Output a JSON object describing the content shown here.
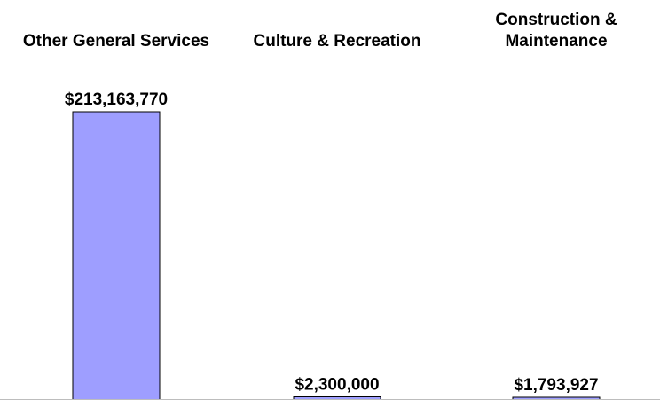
{
  "chart_data": {
    "type": "bar",
    "title": "",
    "xlabel": "",
    "ylabel": "",
    "categories": [
      "Other General Services",
      "Culture & Recreation",
      "Construction & Maintenance"
    ],
    "values": [
      213163770,
      2300000,
      1793927
    ],
    "value_labels": [
      "$213,163,770",
      "$2,300,000",
      "$1,793,927"
    ],
    "bar_color": "#9e9eff",
    "ylim": [
      0,
      213163770
    ],
    "grid": false,
    "legend": "none"
  }
}
